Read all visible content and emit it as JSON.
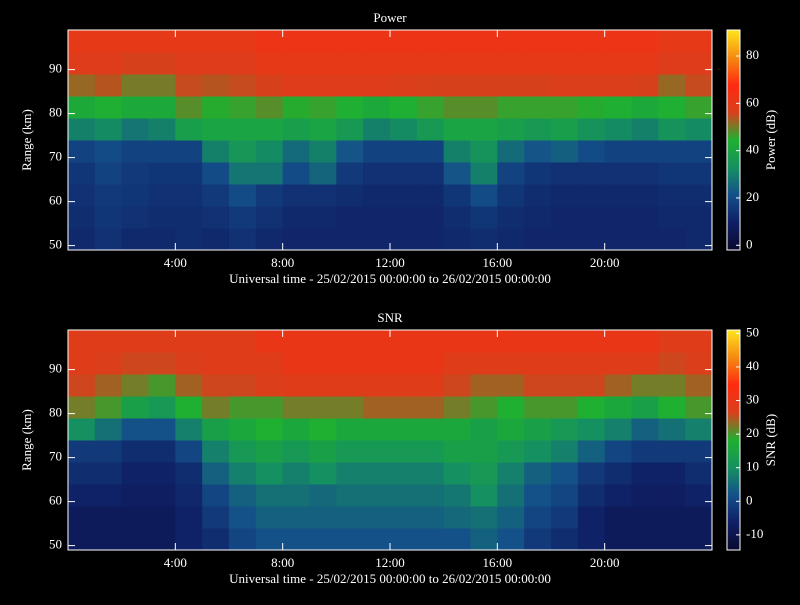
{
  "chart_data": [
    {
      "type": "heatmap",
      "title": "Power",
      "x_label": "Universal time - 25/02/2015 00:00:00 to 26/02/2015 00:00:00",
      "y_label": "Range (km)",
      "colorbar_label": "Power (dB)",
      "xlim": [
        0,
        24
      ],
      "ylim": [
        49,
        99
      ],
      "zlim": [
        -2,
        91
      ],
      "xticks": [
        {
          "value": 4,
          "label": "4:00"
        },
        {
          "value": 8,
          "label": "8:00"
        },
        {
          "value": 12,
          "label": "12:00"
        },
        {
          "value": 16,
          "label": "16:00"
        },
        {
          "value": 20,
          "label": "20:00"
        }
      ],
      "yticks": [
        50,
        60,
        70,
        80,
        90
      ],
      "zticks": [
        0,
        20,
        40,
        60,
        80
      ],
      "colormap": [
        "#0a0a2e",
        "#0f1f66",
        "#14508a",
        "#159060",
        "#1fb030",
        "#d8401c",
        "#ff2a10",
        "#f58a10",
        "#ffe41e"
      ],
      "xbins": [
        0,
        1,
        2,
        3,
        4,
        5,
        6,
        7,
        8,
        9,
        10,
        11,
        12,
        13,
        14,
        15,
        16,
        17,
        18,
        19,
        20,
        21,
        22,
        23,
        24
      ],
      "ybins": [
        49,
        54,
        59,
        64,
        69,
        74,
        79,
        84,
        89,
        94,
        99
      ],
      "z": [
        [
          12,
          14,
          12,
          12,
          13,
          12,
          14,
          12,
          11,
          11,
          11,
          11,
          11,
          11,
          12,
          13,
          12,
          11,
          11,
          11,
          11,
          11,
          11,
          12
        ],
        [
          13,
          15,
          14,
          13,
          13,
          14,
          16,
          14,
          12,
          12,
          11,
          11,
          11,
          11,
          13,
          15,
          13,
          12,
          11,
          11,
          11,
          11,
          12,
          12
        ],
        [
          14,
          16,
          15,
          14,
          14,
          16,
          20,
          16,
          14,
          14,
          13,
          12,
          12,
          12,
          15,
          20,
          15,
          13,
          12,
          12,
          12,
          12,
          13,
          13
        ],
        [
          15,
          18,
          16,
          15,
          15,
          20,
          28,
          28,
          20,
          25,
          16,
          14,
          14,
          14,
          22,
          30,
          18,
          15,
          14,
          14,
          14,
          14,
          15,
          15
        ],
        [
          18,
          20,
          18,
          18,
          18,
          30,
          35,
          32,
          26,
          30,
          22,
          18,
          18,
          18,
          30,
          34,
          26,
          22,
          24,
          20,
          18,
          18,
          18,
          18
        ],
        [
          30,
          32,
          28,
          30,
          38,
          40,
          40,
          40,
          38,
          40,
          36,
          30,
          32,
          36,
          40,
          40,
          38,
          36,
          38,
          34,
          32,
          30,
          34,
          32
        ],
        [
          42,
          44,
          42,
          42,
          48,
          45,
          46,
          48,
          45,
          46,
          44,
          42,
          44,
          46,
          48,
          48,
          46,
          46,
          46,
          45,
          44,
          42,
          44,
          46
        ],
        [
          52,
          54,
          50,
          50,
          55,
          54,
          55,
          56,
          58,
          58,
          58,
          58,
          57,
          56,
          56,
          56,
          56,
          56,
          57,
          57,
          57,
          56,
          52,
          55
        ],
        [
          58,
          58,
          56,
          56,
          58,
          58,
          58,
          60,
          60,
          60,
          60,
          60,
          60,
          60,
          60,
          60,
          60,
          60,
          60,
          60,
          60,
          60,
          58,
          58
        ],
        [
          60,
          60,
          60,
          60,
          60,
          60,
          60,
          62,
          62,
          62,
          62,
          62,
          62,
          62,
          62,
          62,
          62,
          62,
          62,
          62,
          62,
          62,
          60,
          60
        ]
      ]
    },
    {
      "type": "heatmap",
      "title": "SNR",
      "x_label": "Universal time - 25/02/2015 00:00:00 to 26/02/2015 00:00:00",
      "y_label": "Range (km)",
      "colorbar_label": "SNR (dB)",
      "xlim": [
        0,
        24
      ],
      "ylim": [
        49,
        99
      ],
      "zlim": [
        -14.5,
        51
      ],
      "xticks": [
        {
          "value": 4,
          "label": "4:00"
        },
        {
          "value": 8,
          "label": "8:00"
        },
        {
          "value": 12,
          "label": "12:00"
        },
        {
          "value": 16,
          "label": "16:00"
        },
        {
          "value": 20,
          "label": "20:00"
        }
      ],
      "yticks": [
        50,
        60,
        70,
        80,
        90
      ],
      "zticks": [
        -10,
        0,
        10,
        20,
        30,
        40,
        50
      ],
      "colormap": [
        "#0a0a2e",
        "#0f1f66",
        "#14508a",
        "#159060",
        "#1fb030",
        "#d8401c",
        "#ff2a10",
        "#f58a10",
        "#ffe41e"
      ],
      "xbins": [
        0,
        1,
        2,
        3,
        4,
        5,
        6,
        7,
        8,
        9,
        10,
        11,
        12,
        13,
        14,
        15,
        16,
        17,
        18,
        19,
        20,
        21,
        22,
        23,
        24
      ],
      "ybins": [
        49,
        54,
        59,
        64,
        69,
        74,
        79,
        84,
        89,
        94,
        99
      ],
      "z": [
        [
          -8,
          -8,
          -8,
          -8,
          -6,
          -4,
          0,
          2,
          2,
          2,
          2,
          2,
          2,
          2,
          2,
          4,
          2,
          -2,
          -4,
          -6,
          -8,
          -8,
          -8,
          -8
        ],
        [
          -8,
          -8,
          -8,
          -8,
          -6,
          -2,
          2,
          4,
          4,
          4,
          4,
          4,
          4,
          4,
          5,
          6,
          4,
          0,
          -2,
          -6,
          -8,
          -8,
          -8,
          -8
        ],
        [
          -6,
          -6,
          -7,
          -7,
          -5,
          0,
          4,
          6,
          6,
          5,
          6,
          6,
          6,
          6,
          7,
          10,
          6,
          2,
          0,
          -4,
          -6,
          -7,
          -7,
          -6
        ],
        [
          -4,
          -4,
          -6,
          -6,
          -4,
          4,
          8,
          10,
          8,
          10,
          8,
          8,
          8,
          8,
          10,
          12,
          8,
          4,
          2,
          -2,
          -4,
          -6,
          -6,
          -4
        ],
        [
          -2,
          -2,
          -4,
          -4,
          0,
          8,
          12,
          14,
          12,
          14,
          12,
          12,
          12,
          12,
          14,
          14,
          12,
          10,
          8,
          4,
          0,
          -2,
          -2,
          -2
        ],
        [
          10,
          6,
          2,
          2,
          8,
          14,
          16,
          18,
          16,
          18,
          16,
          16,
          16,
          16,
          16,
          14,
          16,
          14,
          12,
          10,
          8,
          4,
          6,
          8
        ],
        [
          22,
          20,
          14,
          12,
          18,
          22,
          20,
          20,
          22,
          22,
          22,
          24,
          24,
          24,
          22,
          20,
          18,
          20,
          20,
          18,
          16,
          14,
          18,
          20
        ],
        [
          26,
          24,
          22,
          20,
          24,
          26,
          26,
          27,
          28,
          28,
          28,
          28,
          28,
          28,
          26,
          24,
          24,
          26,
          26,
          26,
          24,
          22,
          22,
          24
        ],
        [
          28,
          27,
          26,
          26,
          27,
          28,
          28,
          28,
          30,
          30,
          30,
          30,
          30,
          30,
          28,
          28,
          28,
          28,
          28,
          28,
          28,
          28,
          26,
          27
        ],
        [
          28,
          28,
          28,
          28,
          28,
          28,
          28,
          30,
          30,
          30,
          30,
          30,
          30,
          30,
          30,
          30,
          30,
          30,
          30,
          30,
          30,
          30,
          28,
          28
        ]
      ]
    }
  ]
}
